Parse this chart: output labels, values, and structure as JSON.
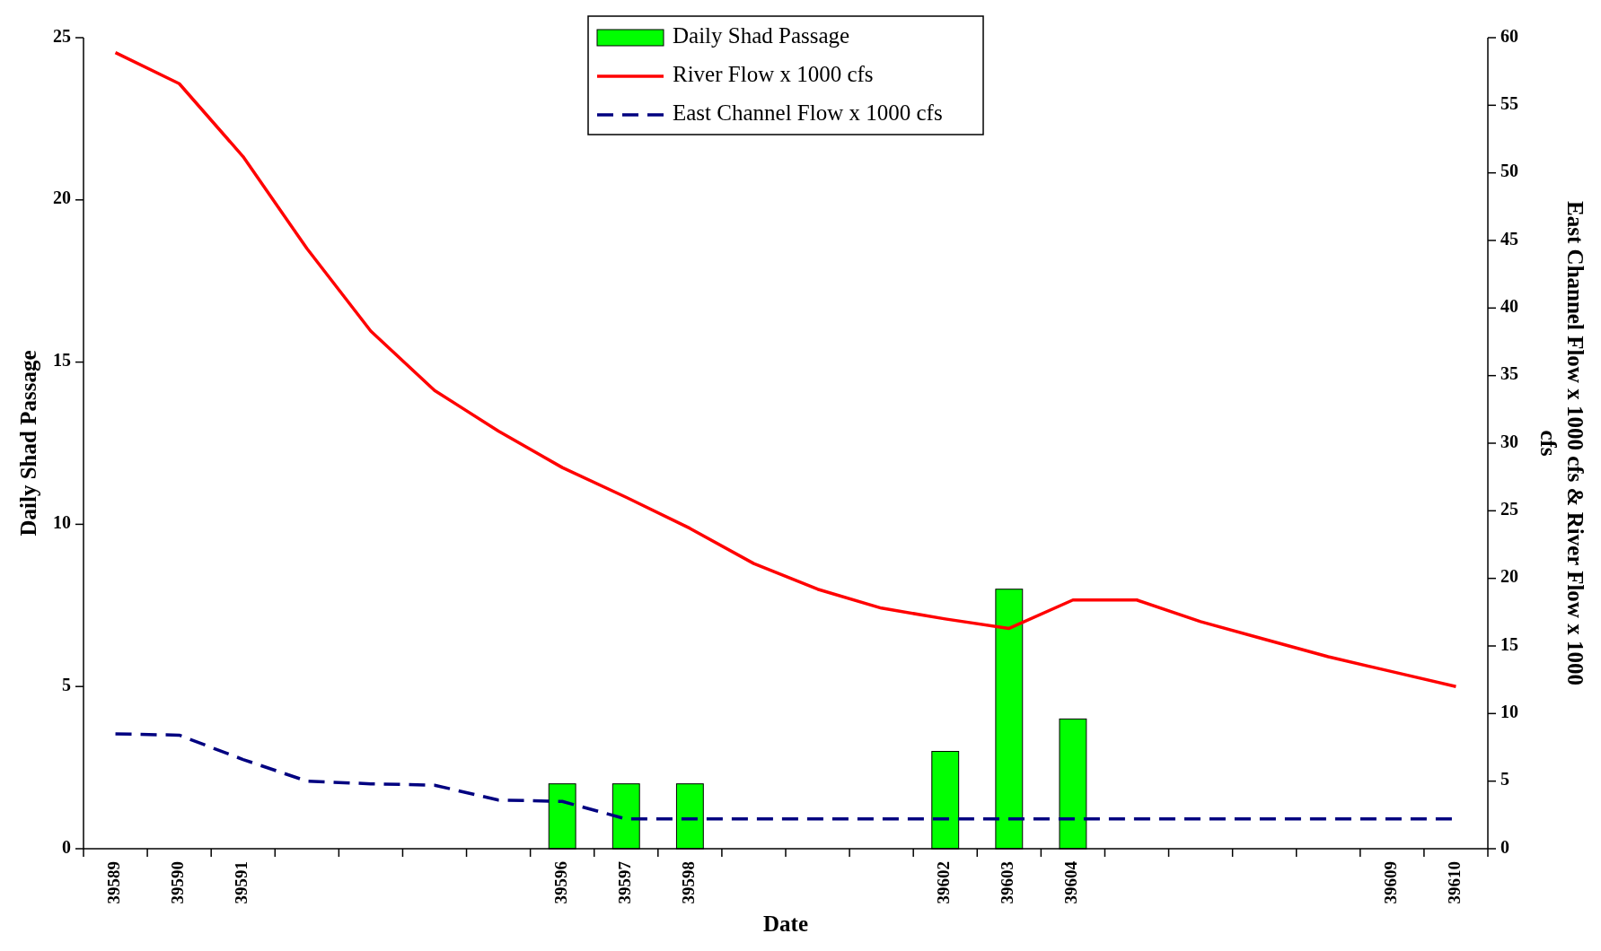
{
  "chart_data": {
    "type": "bar",
    "xlabel": "Date",
    "ylabel": "Daily Shad Passage",
    "y2label": "East Channel Flow x 1000 cfs & River Flow x 1000 cfs",
    "categories": [
      "39589",
      "39590",
      "39591",
      null,
      null,
      null,
      null,
      "39596",
      "39597",
      "39598",
      null,
      null,
      null,
      "39602",
      "39603",
      "39604",
      null,
      null,
      null,
      null,
      "39609",
      "39610"
    ],
    "series": [
      {
        "name": "Daily Shad Passage",
        "color": "#00ff00",
        "values": [
          null,
          null,
          null,
          null,
          null,
          null,
          null,
          2,
          2,
          2,
          null,
          null,
          null,
          3,
          8,
          4,
          null,
          null,
          null,
          null,
          null,
          null
        ]
      },
      {
        "name": "River Flow x 1000 cfs",
        "type": "line",
        "axis": "y2",
        "color": "#ff0000",
        "line_style": "solid",
        "values": [
          58.9,
          56.6,
          51.2,
          44.4,
          38.3,
          33.9,
          30.9,
          28.2,
          26.0,
          23.7,
          21.1,
          19.2,
          17.8,
          17.0,
          16.3,
          18.4,
          18.4,
          16.8,
          15.5,
          14.2,
          13.1,
          12.0
        ]
      },
      {
        "name": "East Channel Flow x 1000 cfs",
        "type": "line",
        "axis": "y2",
        "color": "#000080",
        "line_style": "dashed",
        "values": [
          8.5,
          8.4,
          6.6,
          5.0,
          4.8,
          4.7,
          3.6,
          3.5,
          2.2,
          2.2,
          2.2,
          2.2,
          2.2,
          2.2,
          2.2,
          2.2,
          2.2,
          2.2,
          2.2,
          2.2,
          2.2,
          2.2
        ]
      }
    ],
    "ylim": [
      0,
      25
    ],
    "yticks": [
      0,
      5,
      10,
      15,
      20,
      25
    ],
    "y2lim": [
      0,
      60
    ],
    "y2ticks": [
      0,
      5,
      10,
      15,
      20,
      25,
      30,
      35,
      40,
      45,
      50,
      55,
      60
    ],
    "grid": false,
    "legend": "top"
  }
}
